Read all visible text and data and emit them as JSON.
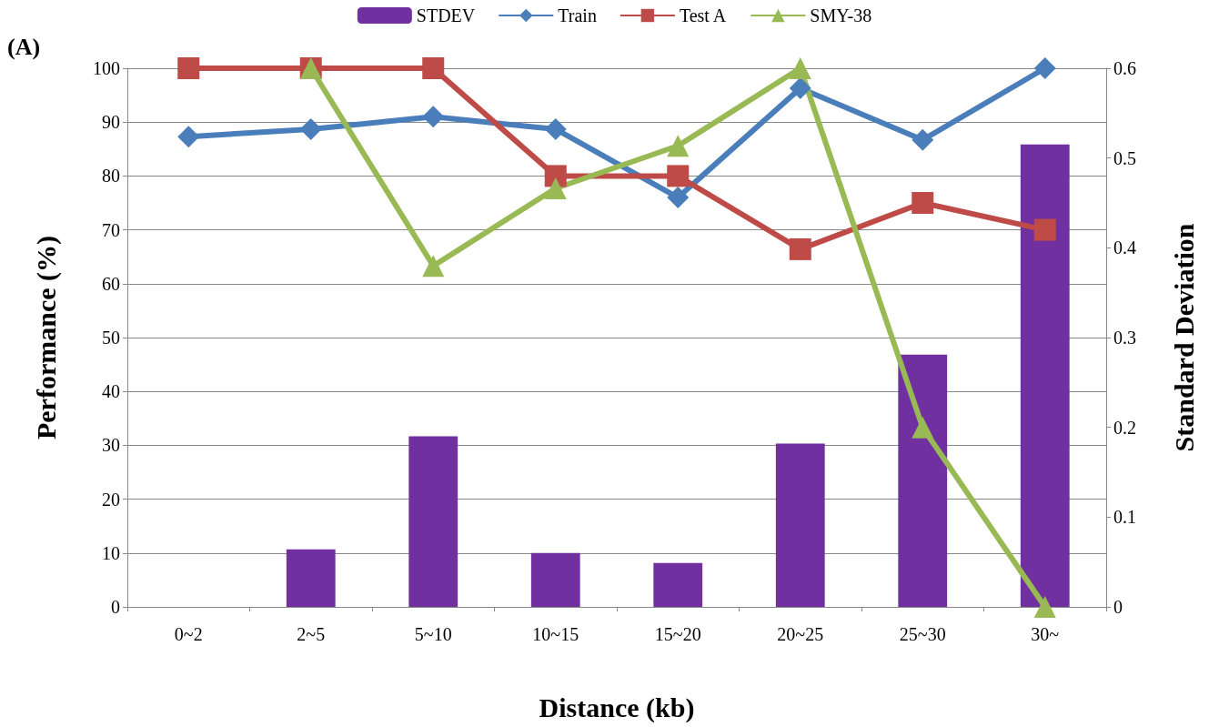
{
  "chart_data": {
    "type": "line",
    "annotations": [
      "(A)"
    ],
    "xlabel": "Distance (kb)",
    "ylabel": "Performance (%)",
    "y2label": "Standard Deviation",
    "categories": [
      "0~2",
      "2~5",
      "5~10",
      "10~15",
      "15~20",
      "20~25",
      "25~30",
      "30~"
    ],
    "series": [
      {
        "name": "STDEV",
        "type": "bar",
        "axis": "y2",
        "color": "#7030a0",
        "values": [
          0,
          0.064,
          0.19,
          0.06,
          0.049,
          0.182,
          0.281,
          0.515
        ]
      },
      {
        "name": "Train",
        "color": "#4a7ebb",
        "marker": "diamond",
        "values": [
          87.3,
          88.7,
          91.0,
          88.7,
          76.0,
          96.3,
          86.7,
          100
        ]
      },
      {
        "name": "Test A",
        "color": "#be4b48",
        "marker": "square",
        "values": [
          100,
          100,
          100,
          80,
          80,
          66.4,
          75,
          70
        ]
      },
      {
        "name": "SMY-38",
        "color": "#98b954",
        "marker": "triangle",
        "values": [
          null,
          100,
          63.3,
          77.7,
          85.6,
          100,
          33.3,
          0
        ]
      }
    ],
    "ylim": [
      0,
      100
    ],
    "yticks": [
      0,
      10,
      20,
      30,
      40,
      50,
      60,
      70,
      80,
      90,
      100
    ],
    "y2lim": [
      0,
      0.6
    ],
    "y2ticks": [
      0,
      0.1,
      0.2,
      0.3,
      0.4,
      0.5,
      0.6
    ],
    "grid": "y",
    "legend": "top",
    "line_style": "solid"
  }
}
